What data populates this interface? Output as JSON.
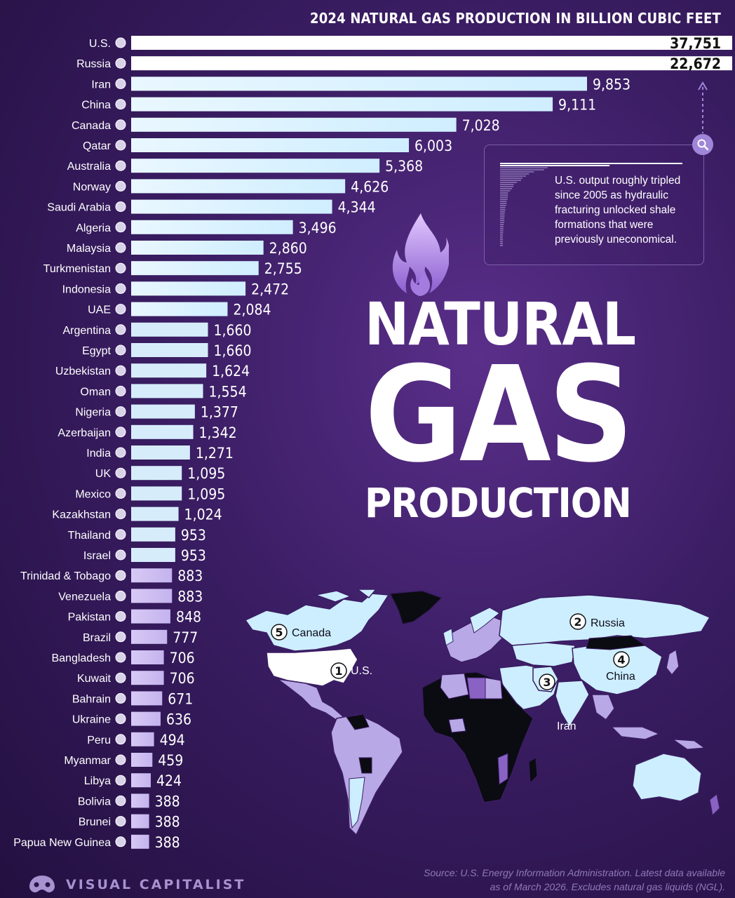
{
  "chart_data": {
    "type": "bar",
    "orientation": "horizontal",
    "title": "2024 NATURAL GAS PRODUCTION IN BILLION CUBIC FEET",
    "categories": [
      "U.S.",
      "Russia",
      "Iran",
      "China",
      "Canada",
      "Qatar",
      "Australia",
      "Norway",
      "Saudi Arabia",
      "Algeria",
      "Malaysia",
      "Turkmenistan",
      "Indonesia",
      "UAE",
      "Argentina",
      "Egypt",
      "Uzbekistan",
      "Oman",
      "Nigeria",
      "Azerbaijan",
      "India",
      "UK",
      "Mexico",
      "Kazakhstan",
      "Thailand",
      "Israel",
      "Trinidad & Tobago",
      "Venezuela",
      "Pakistan",
      "Brazil",
      "Bangladesh",
      "Kuwait",
      "Bahrain",
      "Ukraine",
      "Peru",
      "Myanmar",
      "Libya",
      "Bolivia",
      "Brunei",
      "Papua New Guinea"
    ],
    "values": [
      37751,
      22672,
      9853,
      9111,
      7028,
      6003,
      5368,
      4626,
      4344,
      3496,
      2860,
      2755,
      2472,
      2084,
      1660,
      1660,
      1624,
      1554,
      1377,
      1342,
      1271,
      1095,
      1095,
      1024,
      953,
      953,
      883,
      883,
      848,
      777,
      706,
      706,
      671,
      636,
      494,
      459,
      424,
      388,
      388,
      388
    ],
    "value_labels": [
      "37,751",
      "22,672",
      "9,853",
      "9,111",
      "7,028",
      "6,003",
      "5,368",
      "4,626",
      "4,344",
      "3,496",
      "2,860",
      "2,755",
      "2,472",
      "2,084",
      "1,660",
      "1,660",
      "1,624",
      "1,554",
      "1,377",
      "1,342",
      "1,271",
      "1,095",
      "1,095",
      "1,024",
      "953",
      "953",
      "883",
      "883",
      "848",
      "777",
      "706",
      "706",
      "671",
      "636",
      "494",
      "459",
      "424",
      "388",
      "388",
      "388"
    ],
    "truncated_bars": [
      "U.S.",
      "Russia"
    ],
    "colors": {
      "bar_light": "#ffffff",
      "bar_mid": "#c7ecff",
      "bar_low": "#c9b9f0"
    }
  },
  "headline": {
    "line1": "NATURAL",
    "line2": "GAS",
    "line3": "PRODUCTION"
  },
  "callout": {
    "text": "U.S. output roughly tripled since 2005 as hydraulic fracturing unlocked shale formations that were previously uneconomical.",
    "icon": "magnifier-icon"
  },
  "map": {
    "labels": [
      {
        "rank": "1",
        "name": "U.S."
      },
      {
        "rank": "2",
        "name": "Russia"
      },
      {
        "rank": "3",
        "name": "Iran"
      },
      {
        "rank": "4",
        "name": "China"
      },
      {
        "rank": "5",
        "name": "Canada"
      }
    ],
    "colors": {
      "top": "#ffffff",
      "high": "#cdeeff",
      "mid": "#b9a8e6",
      "low": "#8a62c4",
      "none": "#0b0b12"
    }
  },
  "source": "Source: U.S. Energy Information Administration. Latest data available as of March 2026. Excludes natural gas liquids (NGL).",
  "brand": {
    "name": "VISUAL CAPITALIST",
    "logo": "visual-capitalist-logo-icon"
  }
}
